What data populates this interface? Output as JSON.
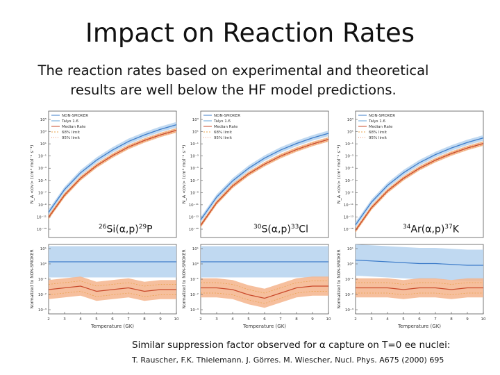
{
  "slide": {
    "title": "Impact on Reaction Rates",
    "subtitle_line1": "The reaction rates based on experimental and theoretical",
    "subtitle_line2": "results are well below the  HF model predictions.",
    "note_prefix": "Similar suppression factor observed for ",
    "note_symbol": "α",
    "note_suffix": " capture on T=0 ee nuclei:",
    "citation": "T. Rauscher, F.K. Thielemann. J. Görres. M. Wiescher, Nucl. Phys. A675 (2000) 695"
  },
  "colors": {
    "non_smoker": "#3d7cc9",
    "non_smoker_band": "#b9d5f0",
    "median": "#c9482a",
    "median_band": "#f5b48c",
    "limit68": "#e8a04a",
    "limit95": "#e88a63"
  },
  "chart_data": [
    {
      "type": "line",
      "reaction": {
        "mass_a": "26",
        "body": "Si(α,p)",
        "mass_b": "29",
        "end": "P"
      },
      "ylabel": "N_A <σv> (cm³ mol⁻¹ s⁻¹)",
      "ylabel_ratio": "Normalized to NON-SMOKER",
      "xlabel": "Temperature (GK)",
      "legend": [
        "NON-SMOKER",
        "Talys 1.6",
        "Median Rate",
        "68% limit",
        "95% limit"
      ],
      "legend_position": "top-left",
      "yticks": [
        "10⁵",
        "10³",
        "10¹",
        "10⁻¹",
        "10⁻³",
        "10⁻⁵",
        "10⁻⁷",
        "10⁻⁹",
        "10⁻¹¹",
        "10⁻¹³"
      ],
      "ratio_yticks": [
        "10¹",
        "10⁰",
        "10⁻¹",
        "10⁻²",
        "10⁻³"
      ],
      "xticks": [
        "2",
        "3",
        "4",
        "5",
        "6",
        "7",
        "8",
        "9",
        "10"
      ],
      "x": [
        2,
        3,
        4,
        5,
        6,
        7,
        8,
        9,
        10
      ],
      "series": [
        {
          "name": "NON-SMOKER",
          "log10_values": [
            -14.0,
            -9.5,
            -6.2,
            -3.7,
            -1.7,
            0.0,
            1.3,
            2.4,
            3.3
          ]
        },
        {
          "name": "Median Rate",
          "log10_values": [
            -15.0,
            -10.6,
            -7.3,
            -4.8,
            -2.8,
            -1.1,
            0.2,
            1.3,
            2.2
          ]
        }
      ],
      "ratio_series": [
        {
          "name": "NON-SMOKER",
          "log10_values": [
            0,
            0,
            0,
            0,
            0,
            0,
            0,
            0,
            0
          ]
        },
        {
          "name": "Median Rate",
          "log10_values": [
            -1.6,
            -1.5,
            -1.4,
            -1.7,
            -1.6,
            -1.5,
            -1.7,
            -1.6,
            -1.6
          ]
        }
      ]
    },
    {
      "type": "line",
      "reaction": {
        "mass_a": "30",
        "body": "S(α,p)",
        "mass_b": "33",
        "end": "Cl"
      },
      "ylabel": "N_A <σv> (cm³ mol⁻¹ s⁻¹)",
      "ylabel_ratio": "Normalized to NON-SMOKER",
      "xlabel": "Temperature (GK)",
      "legend": [
        "NON-SMOKER",
        "Talys 1.6",
        "Median Rate",
        "68% limit",
        "95% limit"
      ],
      "legend_position": "top-left",
      "yticks": [
        "10³",
        "10¹",
        "10⁻¹",
        "10⁻³",
        "10⁻⁵",
        "10⁻⁷",
        "10⁻⁹",
        "10⁻¹¹",
        "10⁻¹³",
        "10⁻¹⁵"
      ],
      "ratio_yticks": [
        "10¹",
        "10⁰",
        "10⁻¹",
        "10⁻²",
        "10⁻³"
      ],
      "xticks": [
        "2",
        "3",
        "4",
        "5",
        "6",
        "7",
        "8",
        "9",
        "10"
      ],
      "x": [
        2,
        3,
        4,
        5,
        6,
        7,
        8,
        9,
        10
      ],
      "series": [
        {
          "name": "NON-SMOKER",
          "log10_values": [
            -15.5,
            -11.0,
            -7.8,
            -5.3,
            -3.3,
            -1.7,
            -0.4,
            0.7,
            1.6
          ]
        },
        {
          "name": "Median Rate",
          "log10_values": [
            -16.6,
            -12.1,
            -8.8,
            -6.4,
            -4.5,
            -2.9,
            -1.6,
            -0.5,
            0.4
          ]
        }
      ],
      "ratio_series": [
        {
          "name": "NON-SMOKER",
          "log10_values": [
            0,
            0,
            0,
            0,
            0,
            0,
            0,
            0,
            0
          ]
        },
        {
          "name": "Median Rate",
          "log10_values": [
            -1.5,
            -1.5,
            -1.6,
            -1.9,
            -2.1,
            -1.8,
            -1.5,
            -1.4,
            -1.4
          ]
        }
      ]
    },
    {
      "type": "line",
      "reaction": {
        "mass_a": "34",
        "body": "Ar(α,p)",
        "mass_b": "37",
        "end": "K"
      },
      "ylabel": "N_A <σv> (cm³ mol⁻¹ s⁻¹)",
      "ylabel_ratio": "Normalized to NON-SMOKER",
      "xlabel": "Temperature (GK)",
      "legend": [
        "NON-SMOKER",
        "Talys 1.6",
        "Median Rate",
        "68% limit",
        "95% limit"
      ],
      "legend_position": "top-left",
      "yticks": [
        "10³",
        "10¹",
        "10⁻¹",
        "10⁻³",
        "10⁻⁵",
        "10⁻⁷",
        "10⁻⁹",
        "10⁻¹¹",
        "10⁻¹³",
        "10⁻¹⁵"
      ],
      "ratio_yticks": [
        "10¹",
        "10⁰",
        "10⁻¹",
        "10⁻²",
        "10⁻³"
      ],
      "xticks": [
        "2",
        "3",
        "4",
        "5",
        "6",
        "7",
        "8",
        "9",
        "10"
      ],
      "x": [
        2,
        3,
        4,
        5,
        6,
        7,
        8,
        9,
        10
      ],
      "series": [
        {
          "name": "NON-SMOKER",
          "log10_values": [
            -16.5,
            -12.0,
            -8.7,
            -6.2,
            -4.2,
            -2.6,
            -1.3,
            -0.2,
            0.7
          ]
        },
        {
          "name": "Median Rate",
          "log10_values": [
            -17.6,
            -13.1,
            -9.8,
            -7.3,
            -5.3,
            -3.7,
            -2.4,
            -1.3,
            -0.4
          ]
        }
      ],
      "ratio_series": [
        {
          "name": "NON-SMOKER",
          "log10_values": [
            0.1,
            0.05,
            0.0,
            -0.05,
            -0.1,
            -0.1,
            -0.15,
            -0.2,
            -0.2
          ]
        },
        {
          "name": "Median Rate",
          "log10_values": [
            -1.5,
            -1.5,
            -1.5,
            -1.6,
            -1.5,
            -1.5,
            -1.6,
            -1.5,
            -1.5
          ]
        }
      ]
    }
  ]
}
